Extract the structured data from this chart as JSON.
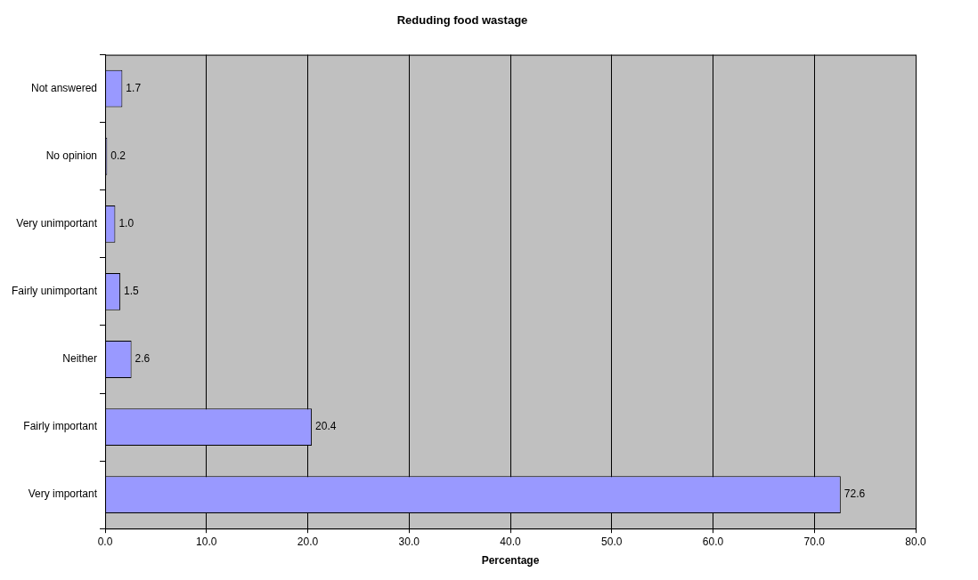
{
  "chart_data": {
    "type": "bar",
    "orientation": "horizontal",
    "title": "Reduding food wastage",
    "xlabel": "Percentage",
    "categories": [
      "Not answered",
      "No opinion",
      "Very unimportant",
      "Fairly unimportant",
      "Neither",
      "Fairly important",
      "Very important"
    ],
    "values": [
      1.7,
      0.2,
      1.0,
      1.5,
      2.6,
      20.4,
      72.6
    ],
    "color": "#9999ff",
    "xlim": [
      0,
      80
    ],
    "xticks": [
      {
        "value": 0,
        "label": "0.0"
      },
      {
        "value": 10,
        "label": "10.0"
      },
      {
        "value": 20,
        "label": "20.0"
      },
      {
        "value": 30,
        "label": "30.0"
      },
      {
        "value": 40,
        "label": "40.0"
      },
      {
        "value": 50,
        "label": "50.0"
      },
      {
        "value": 60,
        "label": "60.0"
      },
      {
        "value": 70,
        "label": "70.0"
      },
      {
        "value": 80,
        "label": "80.0"
      }
    ],
    "value_labels": [
      "1.7",
      "0.2",
      "1.0",
      "1.5",
      "2.6",
      "20.4",
      "72.6"
    ],
    "grid": "x",
    "legend": false
  }
}
